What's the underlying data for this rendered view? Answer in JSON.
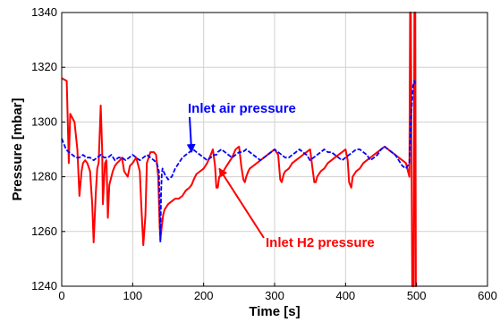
{
  "chart_data": {
    "type": "line",
    "title": "",
    "xlabel": "Time [s]",
    "ylabel": "Pressure [mbar]",
    "xlim": [
      0,
      600
    ],
    "ylim": [
      1240,
      1340
    ],
    "xticks": [
      0,
      100,
      200,
      300,
      400,
      500,
      600
    ],
    "yticks": [
      1240,
      1260,
      1280,
      1300,
      1320,
      1340
    ],
    "grid": true,
    "legend": "none",
    "annotations": [
      {
        "text": "Inlet air pressure",
        "color": "#0000ff",
        "arrow_to": [
          183,
          1289
        ]
      },
      {
        "text": "Inlet H2 pressure",
        "color": "#ff0000",
        "arrow_to": [
          222,
          1283
        ]
      }
    ],
    "series": [
      {
        "name": "Inlet air pressure",
        "color": "#0000ff",
        "style": "dashed",
        "x": [
          0,
          3,
          6,
          10,
          15,
          20,
          25,
          30,
          35,
          40,
          45,
          50,
          55,
          60,
          65,
          70,
          75,
          80,
          85,
          90,
          95,
          100,
          105,
          110,
          115,
          120,
          125,
          130,
          134,
          137,
          138,
          139,
          140,
          141,
          142,
          145,
          150,
          155,
          160,
          165,
          170,
          175,
          180,
          185,
          190,
          195,
          200,
          205,
          210,
          215,
          218,
          220,
          225,
          230,
          235,
          240,
          245,
          250,
          255,
          260,
          265,
          270,
          275,
          280,
          285,
          290,
          295,
          300,
          305,
          310,
          315,
          320,
          325,
          330,
          335,
          340,
          345,
          350,
          355,
          360,
          365,
          370,
          375,
          380,
          385,
          390,
          395,
          400,
          405,
          410,
          415,
          420,
          425,
          430,
          435,
          440,
          445,
          450,
          455,
          460,
          465,
          470,
          475,
          480,
          485,
          490,
          492,
          495,
          497,
          498
        ],
        "y": [
          1294,
          1292,
          1290,
          1289,
          1288,
          1287,
          1287,
          1288,
          1287,
          1287,
          1286,
          1287,
          1288,
          1287,
          1287,
          1288,
          1286,
          1287,
          1287,
          1286,
          1287,
          1288,
          1287,
          1286,
          1287,
          1288,
          1287,
          1286,
          1285,
          1282,
          1270,
          1256,
          1274,
          1281,
          1283,
          1281,
          1279,
          1280,
          1283,
          1285,
          1287,
          1288,
          1289,
          1290,
          1289,
          1288,
          1287,
          1286,
          1287,
          1288,
          1288,
          1289,
          1290,
          1289,
          1288,
          1287,
          1288,
          1289,
          1289,
          1290,
          1289,
          1288,
          1287,
          1286,
          1287,
          1288,
          1289,
          1290,
          1289,
          1288,
          1287,
          1287,
          1288,
          1289,
          1290,
          1289,
          1288,
          1286,
          1287,
          1288,
          1289,
          1290,
          1289,
          1289,
          1288,
          1287,
          1286,
          1287,
          1288,
          1289,
          1290,
          1290,
          1289,
          1288,
          1286,
          1287,
          1288,
          1290,
          1291,
          1290,
          1289,
          1288,
          1286,
          1284,
          1283,
          1285,
          1300,
          1313,
          1315,
          1314
        ]
      },
      {
        "name": "Inlet H2 pressure",
        "color": "#ff0000",
        "style": "solid",
        "x": [
          0,
          7,
          9,
          10,
          12,
          14,
          18,
          22,
          25,
          28,
          30,
          33,
          36,
          40,
          43,
          45,
          48,
          50,
          52,
          55,
          57,
          58,
          61,
          63,
          65,
          67,
          72,
          75,
          78,
          82,
          85,
          88,
          93,
          96,
          100,
          105,
          110,
          112,
          115,
          118,
          120,
          125,
          130,
          133,
          136,
          138,
          139,
          141,
          143,
          145,
          150,
          155,
          160,
          165,
          170,
          175,
          180,
          183,
          186,
          190,
          195,
          200,
          205,
          210,
          213,
          216,
          218,
          220,
          222,
          226,
          230,
          235,
          240,
          245,
          250,
          253,
          256,
          258,
          260,
          263,
          265,
          270,
          275,
          280,
          285,
          290,
          295,
          300,
          305,
          308,
          310,
          313,
          315,
          320,
          325,
          330,
          335,
          340,
          345,
          350,
          353,
          356,
          358,
          360,
          365,
          370,
          375,
          380,
          385,
          390,
          395,
          400,
          403,
          405,
          408,
          410,
          415,
          420,
          425,
          430,
          435,
          440,
          445,
          450,
          455,
          460,
          465,
          470,
          475,
          480,
          485,
          488,
          490,
          491,
          492,
          494,
          496,
          497,
          498,
          499,
          500
        ],
        "y": [
          1316,
          1315,
          1296,
          1285,
          1303,
          1302,
          1300,
          1290,
          1273,
          1282,
          1285,
          1286,
          1285,
          1282,
          1270,
          1256,
          1274,
          1283,
          1285,
          1306,
          1290,
          1270,
          1285,
          1286,
          1265,
          1277,
          1282,
          1284,
          1285,
          1286,
          1287,
          1282,
          1280,
          1284,
          1285,
          1287,
          1282,
          1270,
          1255,
          1266,
          1285,
          1289,
          1289,
          1288,
          1280,
          1262,
          1257,
          1262,
          1266,
          1268,
          1270,
          1271,
          1272,
          1272,
          1273,
          1275,
          1276,
          1277,
          1279,
          1281,
          1282,
          1283,
          1285,
          1288,
          1290,
          1284,
          1276,
          1276,
          1280,
          1281,
          1283,
          1285,
          1287,
          1290,
          1291,
          1284,
          1279,
          1278,
          1280,
          1282,
          1283,
          1284,
          1285,
          1286,
          1287,
          1288,
          1289,
          1290,
          1288,
          1279,
          1278,
          1281,
          1282,
          1283,
          1285,
          1286,
          1287,
          1288,
          1289,
          1290,
          1284,
          1278,
          1278,
          1280,
          1282,
          1283,
          1285,
          1286,
          1287,
          1288,
          1289,
          1290,
          1286,
          1278,
          1276,
          1280,
          1282,
          1283,
          1285,
          1286,
          1287,
          1288,
          1289,
          1290,
          1291,
          1290,
          1289,
          1288,
          1287,
          1286,
          1285,
          1282,
          1280,
          1340,
          1340,
          1240,
          1240,
          1340,
          1340,
          1240,
          1240
        ]
      }
    ]
  }
}
